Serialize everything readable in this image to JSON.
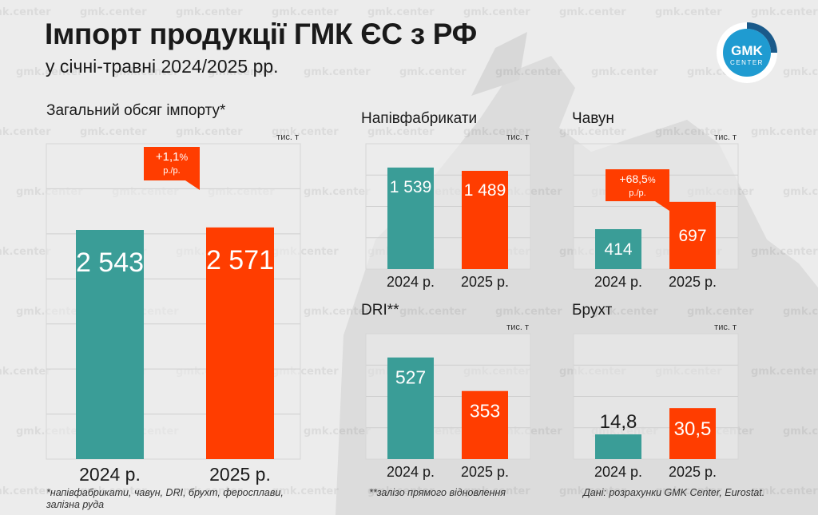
{
  "header": {
    "title": "Імпорт продукції ГМК ЄС з РФ",
    "subtitle": "у січні-травні 2024/2025 рр."
  },
  "logo": {
    "line1": "GMK",
    "line2": "CENTER",
    "accent": "#1aa3d4"
  },
  "watermark_text": "gmk.center",
  "colors": {
    "teal": "#3a9d97",
    "orange": "#ff3d00",
    "grid": "#cfcfcf",
    "panel_border": "#d6d6d6"
  },
  "chart_data": [
    {
      "id": "total",
      "type": "bar",
      "title": "Загальний обсяг імпорту*",
      "unit": "тис. т",
      "categories": [
        "2024 р.",
        "2025 р."
      ],
      "values": [
        2543,
        2571
      ],
      "value_labels": [
        "2 543",
        "2 571"
      ],
      "ylim": [
        0,
        3500
      ],
      "change": {
        "pct": "+1,1",
        "suffix": "%",
        "unit": "р./р."
      }
    },
    {
      "id": "semis",
      "type": "bar",
      "title": "Напівфабрикати",
      "unit": "тис. т",
      "categories": [
        "2024 р.",
        "2025 р."
      ],
      "values": [
        1539,
        1489
      ],
      "value_labels": [
        "1 539",
        "1 489"
      ],
      "ylim": [
        0,
        1900
      ]
    },
    {
      "id": "pigiron",
      "type": "bar",
      "title": "Чавун",
      "unit": "тис. т",
      "categories": [
        "2024 р.",
        "2025 р."
      ],
      "values": [
        414,
        697
      ],
      "value_labels": [
        "414",
        "697"
      ],
      "ylim": [
        0,
        1300
      ],
      "change": {
        "pct": "+68,5",
        "suffix": "%",
        "unit": "р./р."
      }
    },
    {
      "id": "dri",
      "type": "bar",
      "title": "DRI**",
      "unit": "тис. т",
      "categories": [
        "2024 р.",
        "2025 р."
      ],
      "values": [
        527,
        353
      ],
      "value_labels": [
        "527",
        "353"
      ],
      "ylim": [
        0,
        650
      ]
    },
    {
      "id": "scrap",
      "type": "bar",
      "title": "Брухт",
      "unit": "тис. т",
      "categories": [
        "2024 р.",
        "2025 р."
      ],
      "values": [
        14.8,
        30.5
      ],
      "value_labels": [
        "14,8",
        "30,5"
      ],
      "ylim": [
        0,
        75
      ]
    }
  ],
  "footnotes": {
    "left": "*напівфабрикати, чавун, DRI, брухт, феросплави, залізна руда",
    "middle": "**залізо прямого відновлення",
    "right": "Дані: розрахунки GMK Center, Eurostat."
  }
}
